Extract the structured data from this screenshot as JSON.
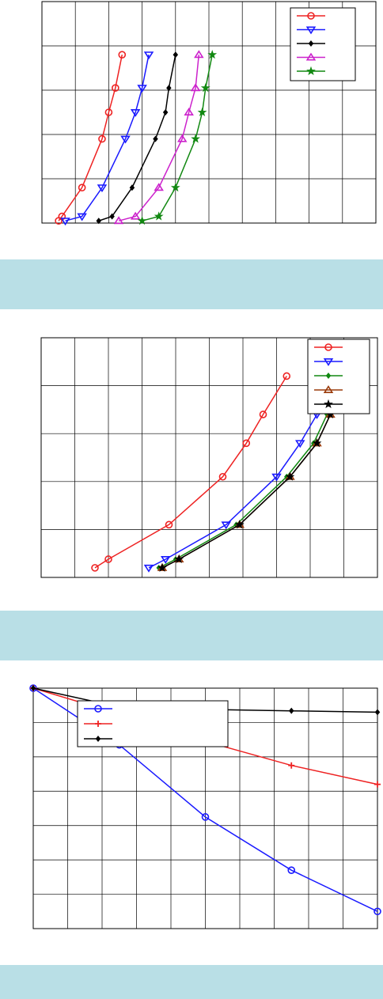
{
  "chart_data": [
    {
      "type": "line",
      "xlim": [
        0,
        10
      ],
      "ylim": [
        5,
        0
      ],
      "x_ticks": 10,
      "y_ticks": 5,
      "grid": true,
      "legend_position": "top-right",
      "series": [
        {
          "color": "#ee2222",
          "marker": "circle",
          "x": [
            0.5,
            0.6,
            1.2,
            1.8,
            2.0,
            2.2,
            2.4
          ],
          "y": [
            0.05,
            0.15,
            0.8,
            1.9,
            2.5,
            3.05,
            3.8
          ]
        },
        {
          "color": "#1a1aff",
          "marker": "triangle-down",
          "x": [
            0.7,
            1.2,
            1.8,
            2.5,
            2.8,
            3.0,
            3.2
          ],
          "y": [
            0.05,
            0.15,
            0.8,
            1.9,
            2.5,
            3.05,
            3.8
          ]
        },
        {
          "color": "#000000",
          "marker": "diamond",
          "x": [
            1.7,
            2.1,
            2.7,
            3.4,
            3.7,
            3.8,
            4.0
          ],
          "y": [
            0.05,
            0.15,
            0.8,
            1.9,
            2.5,
            3.05,
            3.8
          ]
        },
        {
          "color": "#cc22cc",
          "marker": "triangle-up",
          "x": [
            2.3,
            2.8,
            3.5,
            4.2,
            4.4,
            4.6,
            4.7
          ],
          "y": [
            0.05,
            0.15,
            0.8,
            1.9,
            2.5,
            3.05,
            3.8
          ]
        },
        {
          "color": "#118811",
          "marker": "star",
          "x": [
            3.0,
            3.5,
            4.0,
            4.6,
            4.8,
            4.9,
            5.1
          ],
          "y": [
            0.05,
            0.15,
            0.8,
            1.9,
            2.5,
            3.05,
            3.8
          ]
        }
      ]
    },
    {
      "type": "line",
      "xlim": [
        0,
        10
      ],
      "ylim": [
        5,
        0
      ],
      "x_ticks": 10,
      "y_ticks": 5,
      "grid": true,
      "legend_position": "top-right",
      "series": [
        {
          "color": "#ee2222",
          "marker": "circle",
          "x": [
            1.6,
            2.0,
            3.8,
            5.4,
            6.1,
            6.6,
            7.3
          ],
          "y": [
            0.2,
            0.38,
            1.1,
            2.1,
            2.8,
            3.4,
            4.2
          ]
        },
        {
          "color": "#1a1aff",
          "marker": "triangle-down",
          "x": [
            3.2,
            3.7,
            5.5,
            7.0,
            7.7,
            8.2,
            9.0
          ],
          "y": [
            0.2,
            0.38,
            1.1,
            2.1,
            2.8,
            3.4,
            4.2
          ]
        },
        {
          "color": "#118811",
          "marker": "diamond",
          "x": [
            3.5,
            4.0,
            5.8,
            7.3,
            8.1,
            8.5,
            9.3
          ],
          "y": [
            0.2,
            0.38,
            1.1,
            2.1,
            2.8,
            3.4,
            4.2
          ]
        },
        {
          "color": "#9a3a0a",
          "marker": "triangle-up",
          "x": [
            3.6,
            4.1,
            5.9,
            7.4,
            8.2,
            8.6,
            9.4
          ],
          "y": [
            0.2,
            0.38,
            1.1,
            2.1,
            2.8,
            3.4,
            4.2
          ]
        },
        {
          "color": "#000000",
          "marker": "star",
          "x": [
            3.6,
            4.1,
            5.9,
            7.4,
            8.2,
            8.6,
            9.4
          ],
          "y": [
            0.2,
            0.38,
            1.1,
            2.1,
            2.8,
            3.4,
            4.2
          ]
        }
      ]
    },
    {
      "type": "line",
      "xlim": [
        0,
        10
      ],
      "ylim": [
        0,
        7
      ],
      "x_ticks": 10,
      "y_ticks": 7,
      "grid": true,
      "legend_position": "top-left",
      "series": [
        {
          "color": "#1a1aff",
          "marker": "circle",
          "x": [
            0,
            2.5,
            5.0,
            7.5,
            10.0
          ],
          "y": [
            0,
            1.65,
            3.75,
            5.3,
            6.5
          ]
        },
        {
          "color": "#ee2222",
          "marker": "plus",
          "x": [
            0,
            2.5,
            5.0,
            7.5,
            10.0
          ],
          "y": [
            0,
            0.75,
            1.55,
            2.25,
            2.8
          ]
        },
        {
          "color": "#000000",
          "marker": "diamond",
          "x": [
            0,
            2.5,
            5.0,
            7.5,
            10.0
          ],
          "y": [
            0,
            0.55,
            0.62,
            0.66,
            0.7
          ]
        }
      ]
    }
  ],
  "bands": [
    {
      "text": ""
    },
    {
      "text": ""
    },
    {
      "text": ""
    }
  ]
}
